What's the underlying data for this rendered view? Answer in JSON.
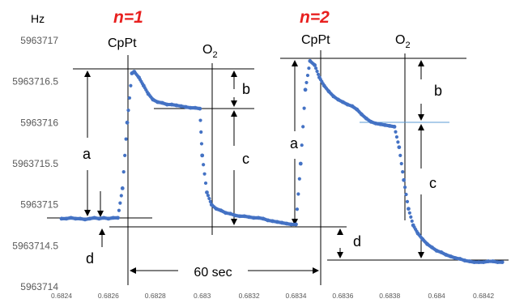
{
  "chart_data": {
    "type": "scatter",
    "ylabel": "Hz",
    "ylim": [
      5963714,
      5963717
    ],
    "yticks": [
      "5963717",
      "5963716.5",
      "5963716",
      "5963715.5",
      "5963715",
      "5963714.5",
      "5963714"
    ],
    "xlim": [
      0.6824,
      0.6843
    ],
    "xticks": [
      "0.6824",
      "0.6826",
      "0.6828",
      "0.683",
      "0.6832",
      "0.6834",
      "0.6836",
      "0.6838",
      "0.684",
      "0.6842"
    ],
    "grid": false,
    "series_color": "#4472c4",
    "series": [
      {
        "x": [
          0.6824,
          0.68242,
          0.68244,
          0.68246,
          0.68248,
          0.6825,
          0.68252,
          0.68254,
          0.68256,
          0.68258,
          0.6826,
          0.68262,
          0.68264,
          0.68266,
          0.68268,
          0.6827,
          0.68271,
          0.68273,
          0.68275,
          0.68277,
          0.68279,
          0.68281,
          0.68283,
          0.68285,
          0.68287,
          0.68289,
          0.68291,
          0.68293,
          0.68295,
          0.68297,
          0.68299,
          0.683,
          0.68302,
          0.68304,
          0.68306,
          0.68308,
          0.6831,
          0.68312,
          0.68314,
          0.68316,
          0.68318,
          0.6832,
          0.68322,
          0.68324,
          0.68326,
          0.68328,
          0.6833,
          0.68332,
          0.68334,
          0.68336,
          0.68338,
          0.6834,
          0.68342,
          0.68344,
          0.68346,
          0.68348,
          0.6835,
          0.68352,
          0.68354,
          0.68356,
          0.68358,
          0.6836,
          0.68362,
          0.68364,
          0.68366,
          0.68368,
          0.6837,
          0.68372,
          0.68374,
          0.68376,
          0.68378,
          0.6838,
          0.68382,
          0.68384,
          0.68386,
          0.68388,
          0.6839,
          0.68392,
          0.68394,
          0.68396,
          0.68398,
          0.684,
          0.68402,
          0.68404,
          0.68406,
          0.68408,
          0.6841,
          0.68412,
          0.68414,
          0.68416,
          0.68418,
          0.6842,
          0.68422,
          0.68424,
          0.68426,
          0.68428
        ],
        "y": [
          5963714.83,
          5963714.83,
          5963714.84,
          5963714.83,
          5963714.83,
          5963714.82,
          5963714.83,
          5963714.84,
          5963714.83,
          5963714.84,
          5963714.83,
          5963714.84,
          5963714.84,
          5963715.2,
          5963716.0,
          5963716.6,
          5963716.62,
          5963716.55,
          5963716.45,
          5963716.35,
          5963716.28,
          5963716.25,
          5963716.24,
          5963716.22,
          5963716.22,
          5963716.21,
          5963716.2,
          5963716.19,
          5963716.18,
          5963716.18,
          5963716.17,
          5963715.6,
          5963715.15,
          5963715.0,
          5963714.95,
          5963714.93,
          5963714.9,
          5963714.89,
          5963714.87,
          5963714.86,
          5963714.86,
          5963714.85,
          5963714.84,
          5963714.84,
          5963714.83,
          5963714.81,
          5963714.8,
          5963714.79,
          5963714.78,
          5963714.77,
          5963714.76,
          5963714.76,
          5963715.5,
          5963716.4,
          5963716.75,
          5963716.7,
          5963716.55,
          5963716.45,
          5963716.38,
          5963716.32,
          5963716.28,
          5963716.25,
          5963716.22,
          5963716.2,
          5963716.16,
          5963716.1,
          5963716.05,
          5963716.01,
          5963715.99,
          5963715.98,
          5963715.97,
          5963715.96,
          5963715.95,
          5963715.7,
          5963715.3,
          5963714.95,
          5963714.75,
          5963714.65,
          5963714.58,
          5963714.52,
          5963714.48,
          5963714.44,
          5963714.42,
          5963714.39,
          5963714.37,
          5963714.35,
          5963714.34,
          5963714.32,
          5963714.31,
          5963714.3,
          5963714.3,
          5963714.3,
          5963714.31,
          5963714.31,
          5963714.3,
          5963714.3
        ]
      }
    ],
    "annotations": {
      "unit_label": "Hz",
      "n1": "n=1",
      "n2": "n=2",
      "cppt": "CpPt",
      "o2": "O",
      "o2_sub": "2",
      "a": "a",
      "b": "b",
      "c": "c",
      "d": "d",
      "time": "60 sec"
    }
  }
}
